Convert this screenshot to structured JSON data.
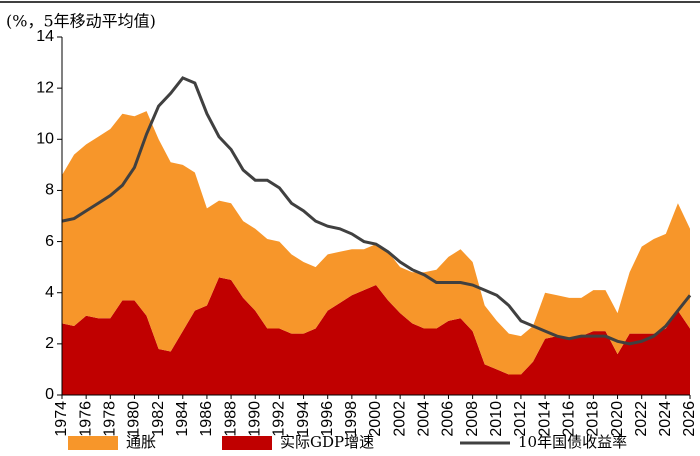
{
  "chart_data": {
    "type": "stacked_area_line",
    "y_label": "(%，5年移动平均值)",
    "x": [
      1974,
      1975,
      1976,
      1977,
      1978,
      1979,
      1980,
      1981,
      1982,
      1983,
      1984,
      1985,
      1986,
      1987,
      1988,
      1989,
      1990,
      1991,
      1992,
      1993,
      1994,
      1995,
      1996,
      1997,
      1998,
      1999,
      2000,
      2001,
      2002,
      2003,
      2004,
      2005,
      2006,
      2007,
      2008,
      2009,
      2010,
      2011,
      2012,
      2013,
      2014,
      2015,
      2016,
      2017,
      2018,
      2019,
      2020,
      2021,
      2022,
      2023,
      2024,
      2025,
      2026
    ],
    "series": [
      {
        "name": "通胀",
        "kind": "area",
        "color": "#f7962a",
        "values": [
          5.8,
          6.7,
          6.7,
          7.1,
          7.4,
          7.3,
          7.2,
          8.0,
          8.2,
          7.4,
          6.5,
          5.4,
          3.8,
          3.0,
          3.0,
          3.0,
          3.2,
          3.5,
          3.4,
          3.1,
          2.8,
          2.4,
          2.2,
          2.0,
          1.8,
          1.6,
          1.6,
          1.9,
          1.8,
          2.0,
          2.2,
          2.3,
          2.5,
          2.7,
          2.7,
          2.3,
          1.9,
          1.6,
          1.5,
          1.4,
          1.8,
          1.6,
          1.6,
          1.5,
          1.6,
          1.6,
          1.6,
          2.4,
          3.4,
          3.7,
          3.7,
          4.2,
          3.9
        ]
      },
      {
        "name": "实际GDP增速",
        "kind": "area",
        "color": "#c00000",
        "values": [
          2.8,
          2.7,
          3.1,
          3.0,
          3.0,
          3.7,
          3.7,
          3.1,
          1.8,
          1.7,
          2.5,
          3.3,
          3.5,
          4.6,
          4.5,
          3.8,
          3.3,
          2.6,
          2.6,
          2.4,
          2.4,
          2.6,
          3.3,
          3.6,
          3.9,
          4.1,
          4.3,
          3.7,
          3.2,
          2.8,
          2.6,
          2.6,
          2.9,
          3.0,
          2.5,
          1.2,
          1.0,
          0.8,
          0.8,
          1.3,
          2.2,
          2.3,
          2.2,
          2.3,
          2.5,
          2.5,
          1.6,
          2.4,
          2.4,
          2.4,
          2.6,
          3.3,
          2.6
        ]
      },
      {
        "name": "10年国债收益率",
        "kind": "line",
        "color": "#404040",
        "values": [
          6.8,
          6.9,
          7.2,
          7.5,
          7.8,
          8.2,
          8.9,
          10.2,
          11.3,
          11.8,
          12.4,
          12.2,
          11.0,
          10.1,
          9.6,
          8.8,
          8.4,
          8.4,
          8.1,
          7.5,
          7.2,
          6.8,
          6.6,
          6.5,
          6.3,
          6.0,
          5.9,
          5.6,
          5.2,
          4.9,
          4.7,
          4.4,
          4.4,
          4.4,
          4.3,
          4.1,
          3.9,
          3.5,
          2.9,
          2.7,
          2.5,
          2.3,
          2.2,
          2.3,
          2.3,
          2.3,
          2.1,
          2.0,
          2.1,
          2.3,
          2.7,
          3.3,
          3.9
        ]
      }
    ],
    "xlim": [
      1974,
      2026
    ],
    "xticks": [
      1974,
      1976,
      1978,
      1980,
      1982,
      1984,
      1986,
      1988,
      1990,
      1992,
      1994,
      1996,
      1998,
      2000,
      2002,
      2004,
      2006,
      2008,
      2010,
      2012,
      2014,
      2016,
      2018,
      2020,
      2022,
      2024,
      2026
    ],
    "ylim": [
      0,
      14
    ],
    "yticks": [
      0,
      2,
      4,
      6,
      8,
      10,
      12,
      14
    ],
    "legend": "bottom"
  }
}
